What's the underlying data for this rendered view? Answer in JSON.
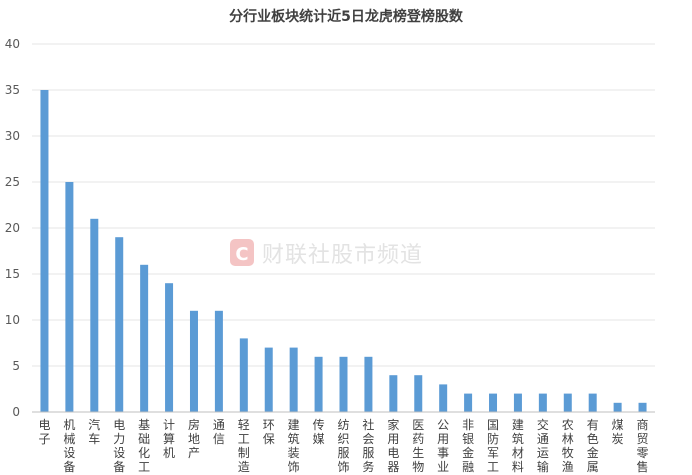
{
  "chart_data": {
    "type": "bar",
    "title": "分行业板块统计近5日龙虎榜登榜股数",
    "categories": [
      "电子",
      "机械设备",
      "汽车",
      "电力设备",
      "基础化工",
      "计算机",
      "房地产",
      "通信",
      "轻工制造",
      "环保",
      "建筑装饰",
      "传媒",
      "纺织服饰",
      "社会服务",
      "家用电器",
      "医药生物",
      "公用事业",
      "非银金融",
      "国防军工",
      "建筑材料",
      "交通运输",
      "农林牧渔",
      "有色金属",
      "煤炭",
      "商贸零售"
    ],
    "values": [
      35,
      25,
      21,
      19,
      16,
      14,
      11,
      11,
      8,
      7,
      7,
      6,
      6,
      6,
      4,
      4,
      3,
      2,
      2,
      2,
      2,
      2,
      2,
      1,
      1
    ],
    "ylim": [
      0,
      40
    ],
    "yticks": [
      0,
      5,
      10,
      15,
      20,
      25,
      30,
      35,
      40
    ],
    "grid": true,
    "bar_color": "#5b9bd5",
    "watermark": {
      "text": "财联社股市频道",
      "logo_letter": "C",
      "logo_color": "#f4c4c4"
    }
  }
}
